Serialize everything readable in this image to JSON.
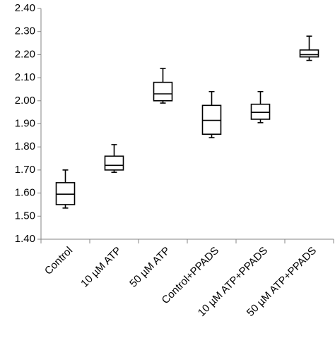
{
  "chart_data": {
    "type": "box",
    "categories": [
      "Control",
      "10 µM ATP",
      "50 µM ATP",
      "Control+PPADS",
      "10 µM ATP+PPADS",
      "50 µM ATP+PPADS"
    ],
    "boxes": [
      {
        "min": 1.535,
        "q1": 1.55,
        "median": 1.595,
        "q3": 1.645,
        "max": 1.7
      },
      {
        "min": 1.69,
        "q1": 1.7,
        "median": 1.72,
        "q3": 1.76,
        "max": 1.81
      },
      {
        "min": 1.99,
        "q1": 2.0,
        "median": 2.03,
        "q3": 2.08,
        "max": 2.14
      },
      {
        "min": 1.84,
        "q1": 1.855,
        "median": 1.915,
        "q3": 1.98,
        "max": 2.04
      },
      {
        "min": 1.905,
        "q1": 1.92,
        "median": 1.95,
        "q3": 1.985,
        "max": 2.04
      },
      {
        "min": 2.175,
        "q1": 2.19,
        "median": 2.2,
        "q3": 2.22,
        "max": 2.28
      }
    ],
    "color": "#000000",
    "ylim": [
      1.4,
      2.4
    ],
    "yticks": [
      {
        "value": 1.4,
        "label": "1.40"
      },
      {
        "value": 1.5,
        "label": "1.50"
      },
      {
        "value": 1.6,
        "label": "1.60"
      },
      {
        "value": 1.7,
        "label": "1.70"
      },
      {
        "value": 1.8,
        "label": "1.80"
      },
      {
        "value": 1.9,
        "label": "1.90"
      },
      {
        "value": 2.0,
        "label": "2.00"
      },
      {
        "value": 2.1,
        "label": "2.10"
      },
      {
        "value": 2.2,
        "label": "2.20"
      },
      {
        "value": 2.3,
        "label": "2.30"
      },
      {
        "value": 2.4,
        "label": "2.40"
      }
    ],
    "grid": false
  }
}
